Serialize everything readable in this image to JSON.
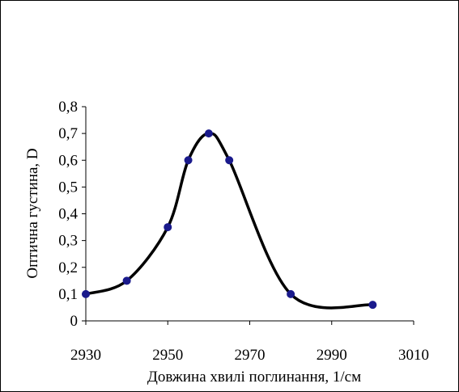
{
  "chart_data": {
    "type": "line",
    "title": "",
    "xlabel": "Довжина хвилі поглинання, 1/см",
    "ylabel": "Оптична густина, D",
    "xlim": [
      2930,
      3010
    ],
    "ylim": [
      0,
      0.8
    ],
    "x_ticks": [
      2930,
      2950,
      2970,
      2990,
      3010
    ],
    "x_tick_labels": [
      "2930",
      "2950",
      "2970",
      "2990",
      "3010"
    ],
    "y_ticks": [
      0,
      0.1,
      0.2,
      0.3,
      0.4,
      0.5,
      0.6,
      0.7,
      0.8
    ],
    "y_tick_labels": [
      "0",
      "0,1",
      "0,2",
      "0,3",
      "0,4",
      "0,5",
      "0,6",
      "0,7",
      "0,8"
    ],
    "grid": false,
    "legend": "none",
    "smooth": true,
    "line_color": "#000000",
    "marker_color": "#1a1a8c",
    "series": [
      {
        "x": [
          2930,
          2940,
          2950,
          2955,
          2960,
          2965,
          2980,
          3000
        ],
        "y": [
          0.1,
          0.15,
          0.35,
          0.6,
          0.7,
          0.6,
          0.1,
          0.06
        ]
      }
    ]
  }
}
